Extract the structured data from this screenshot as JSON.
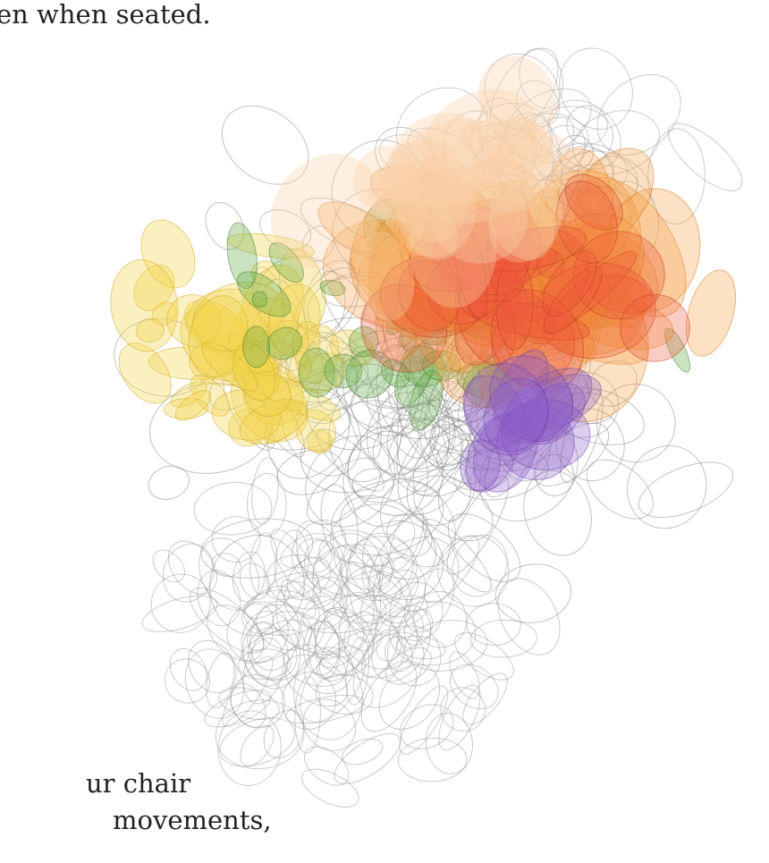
{
  "text": {
    "top_line": "en when seated.",
    "bottom_lines": [
      "ur chair",
      "movements,"
    ]
  }
}
